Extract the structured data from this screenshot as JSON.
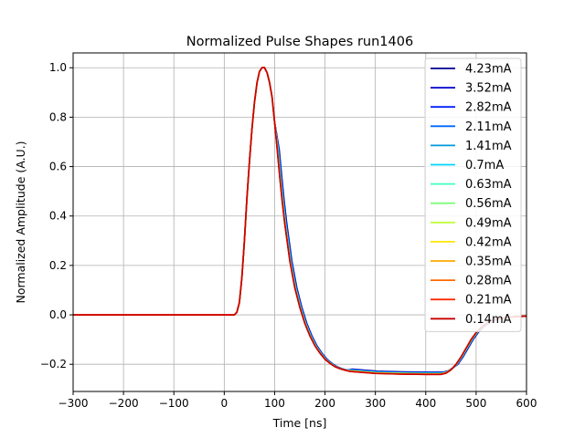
{
  "chart_data": {
    "type": "line",
    "title": "Normalized Pulse Shapes run1406",
    "xlabel": "Time [ns]",
    "ylabel": "Normalized Amplitude (A.U.)",
    "xlim": [
      -300,
      600
    ],
    "ylim": [
      -0.31,
      1.06
    ],
    "xticks": [
      -300,
      -200,
      -100,
      0,
      100,
      200,
      300,
      400,
      500,
      600
    ],
    "xtick_labels": [
      "−300",
      "−200",
      "−100",
      "0",
      "100",
      "200",
      "300",
      "400",
      "500",
      "600"
    ],
    "yticks": [
      -0.2,
      0.0,
      0.2,
      0.4,
      0.6,
      0.8,
      1.0
    ],
    "ytick_labels": [
      "−0.2",
      "0.0",
      "0.2",
      "0.4",
      "0.6",
      "0.8",
      "1.0"
    ],
    "grid": true,
    "legend_position": "top-right",
    "series": [
      {
        "name": "4.23mA",
        "color": "#00008f",
        "shift": 4,
        "undershoot": -0.232
      },
      {
        "name": "3.52mA",
        "color": "#0000c8",
        "shift": 3.5,
        "undershoot": -0.233
      },
      {
        "name": "2.82mA",
        "color": "#0022ff",
        "shift": 3,
        "undershoot": -0.234
      },
      {
        "name": "2.11mA",
        "color": "#0066ff",
        "shift": 2.5,
        "undershoot": -0.235
      },
      {
        "name": "1.41mA",
        "color": "#0099dd",
        "shift": 2,
        "undershoot": -0.236
      },
      {
        "name": "0.7mA",
        "color": "#00d4ff",
        "shift": 1.5,
        "undershoot": -0.237
      },
      {
        "name": "0.63mA",
        "color": "#40ffc0",
        "shift": 1,
        "undershoot": -0.238
      },
      {
        "name": "0.56mA",
        "color": "#7dff7a",
        "shift": 0.8,
        "undershoot": -0.238
      },
      {
        "name": "0.49mA",
        "color": "#c0ff3b",
        "shift": 0.6,
        "undershoot": -0.239
      },
      {
        "name": "0.42mA",
        "color": "#ffe600",
        "shift": 0.4,
        "undershoot": -0.239
      },
      {
        "name": "0.35mA",
        "color": "#ffaa00",
        "shift": 0.3,
        "undershoot": -0.24
      },
      {
        "name": "0.28mA",
        "color": "#ff6a00",
        "shift": 0.2,
        "undershoot": -0.24
      },
      {
        "name": "0.21mA",
        "color": "#ff2a00",
        "shift": 0.1,
        "undershoot": -0.241
      },
      {
        "name": "0.14mA",
        "color": "#c80000",
        "shift": 0,
        "undershoot": -0.241
      }
    ],
    "pulse_model": {
      "baseline_until": 20,
      "peak_time": 80,
      "peak_value": 1.0,
      "undershoot_start": 250,
      "undershoot_end": 430,
      "recovery_end": 600,
      "end_value": -0.005,
      "sample_points": [
        [
          -300,
          0.0
        ],
        [
          20,
          0.0
        ],
        [
          25,
          0.01
        ],
        [
          30,
          0.05
        ],
        [
          35,
          0.15
        ],
        [
          40,
          0.3
        ],
        [
          45,
          0.47
        ],
        [
          50,
          0.62
        ],
        [
          55,
          0.75
        ],
        [
          60,
          0.86
        ],
        [
          65,
          0.94
        ],
        [
          70,
          0.985
        ],
        [
          75,
          1.0
        ],
        [
          80,
          1.0
        ],
        [
          85,
          0.98
        ],
        [
          90,
          0.94
        ],
        [
          95,
          0.88
        ],
        [
          100,
          0.78
        ],
        [
          105,
          0.67
        ],
        [
          110,
          0.56
        ],
        [
          115,
          0.46
        ],
        [
          120,
          0.37
        ],
        [
          130,
          0.22
        ],
        [
          140,
          0.11
        ],
        [
          150,
          0.03
        ],
        [
          160,
          -0.035
        ],
        [
          170,
          -0.085
        ],
        [
          180,
          -0.125
        ],
        [
          190,
          -0.155
        ],
        [
          200,
          -0.18
        ],
        [
          210,
          -0.197
        ],
        [
          220,
          -0.21
        ],
        [
          230,
          -0.218
        ],
        [
          240,
          -0.224
        ],
        [
          250,
          -0.228
        ],
        [
          300,
          -0.236
        ],
        [
          350,
          -0.239
        ],
        [
          400,
          -0.24
        ],
        [
          430,
          -0.24
        ],
        [
          440,
          -0.235
        ],
        [
          450,
          -0.222
        ],
        [
          460,
          -0.2
        ],
        [
          470,
          -0.17
        ],
        [
          480,
          -0.135
        ],
        [
          490,
          -0.1
        ],
        [
          500,
          -0.072
        ],
        [
          510,
          -0.05
        ],
        [
          520,
          -0.035
        ],
        [
          530,
          -0.025
        ],
        [
          540,
          -0.018
        ],
        [
          550,
          -0.014
        ],
        [
          560,
          -0.011
        ],
        [
          570,
          -0.009
        ],
        [
          580,
          -0.007
        ],
        [
          590,
          -0.006
        ],
        [
          600,
          -0.005
        ]
      ]
    }
  }
}
